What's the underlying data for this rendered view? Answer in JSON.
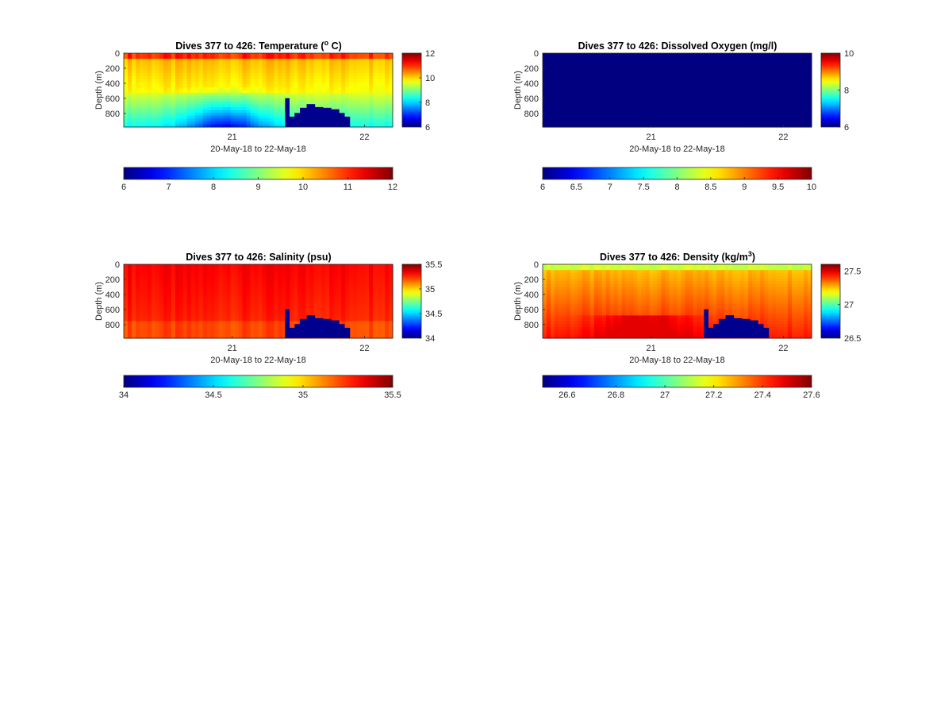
{
  "chart_data": [
    {
      "type": "heatmap",
      "title": "Dives 377 to 426: Temperature (",
      "title_sup": "o",
      "title_end": " C)",
      "xlabel": "20-May-18 to 22-May-18",
      "ylabel": "Depth (m)",
      "x_ticks": [
        "21",
        "22"
      ],
      "y_ticks": [
        "0",
        "200",
        "400",
        "600",
        "800"
      ],
      "ylim": [
        0,
        980
      ],
      "colorbar_ticks": [
        "6",
        "8",
        "10",
        "12"
      ],
      "horizontal_colorbar_ticks": [
        "6",
        "7",
        "8",
        "9",
        "10",
        "11",
        "12"
      ],
      "clim": [
        6,
        12
      ],
      "colormap": "jet",
      "field": "temperature",
      "bottom_fill_color": "#00008f"
    },
    {
      "type": "heatmap",
      "title": "Dives 377 to 426: Dissolved Oxygen (mg/l)",
      "title_sup": "",
      "title_end": "",
      "xlabel": "20-May-18 to 22-May-18",
      "ylabel": "Depth (m)",
      "x_ticks": [
        "21",
        "22"
      ],
      "y_ticks": [
        "0",
        "200",
        "400",
        "600",
        "800"
      ],
      "ylim": [
        0,
        980
      ],
      "colorbar_ticks": [
        "6",
        "8",
        "10"
      ],
      "horizontal_colorbar_ticks": [
        "6",
        "6.5",
        "7",
        "7.5",
        "8",
        "8.5",
        "9",
        "9.5",
        "10"
      ],
      "clim": [
        6,
        10
      ],
      "colormap": "jet",
      "field": "oxygen",
      "bottom_fill_color": "#00008f"
    },
    {
      "type": "heatmap",
      "title": "Dives 377 to 426: Salinity (psu)",
      "title_sup": "",
      "title_end": "",
      "xlabel": "20-May-18 to 22-May-18",
      "ylabel": "Depth (m)",
      "x_ticks": [
        "21",
        "22"
      ],
      "y_ticks": [
        "0",
        "200",
        "400",
        "600",
        "800"
      ],
      "ylim": [
        0,
        980
      ],
      "colorbar_ticks": [
        "34",
        "34.5",
        "35",
        "35.5"
      ],
      "horizontal_colorbar_ticks": [
        "34",
        "34.5",
        "35",
        "35.5"
      ],
      "clim": [
        34,
        35.5
      ],
      "colormap": "jet",
      "field": "salinity",
      "bottom_fill_color": "#00008f"
    },
    {
      "type": "heatmap",
      "title": "Dives 377 to 426: Density (kg/m",
      "title_sup": "3",
      "title_end": ")",
      "xlabel": "20-May-18 to 22-May-18",
      "ylabel": "Depth (m)",
      "x_ticks": [
        "21",
        "22"
      ],
      "y_ticks": [
        "0",
        "200",
        "400",
        "600",
        "800"
      ],
      "ylim": [
        0,
        980
      ],
      "colorbar_ticks": [
        "26.5",
        "27",
        "27.5"
      ],
      "horizontal_colorbar_ticks": [
        "26.6",
        "26.8",
        "27",
        "27.2",
        "27.4",
        "27.6"
      ],
      "clim": [
        26.5,
        27.6
      ],
      "colormap": "jet",
      "field": "density",
      "bottom_fill_color": "#00008f"
    }
  ]
}
